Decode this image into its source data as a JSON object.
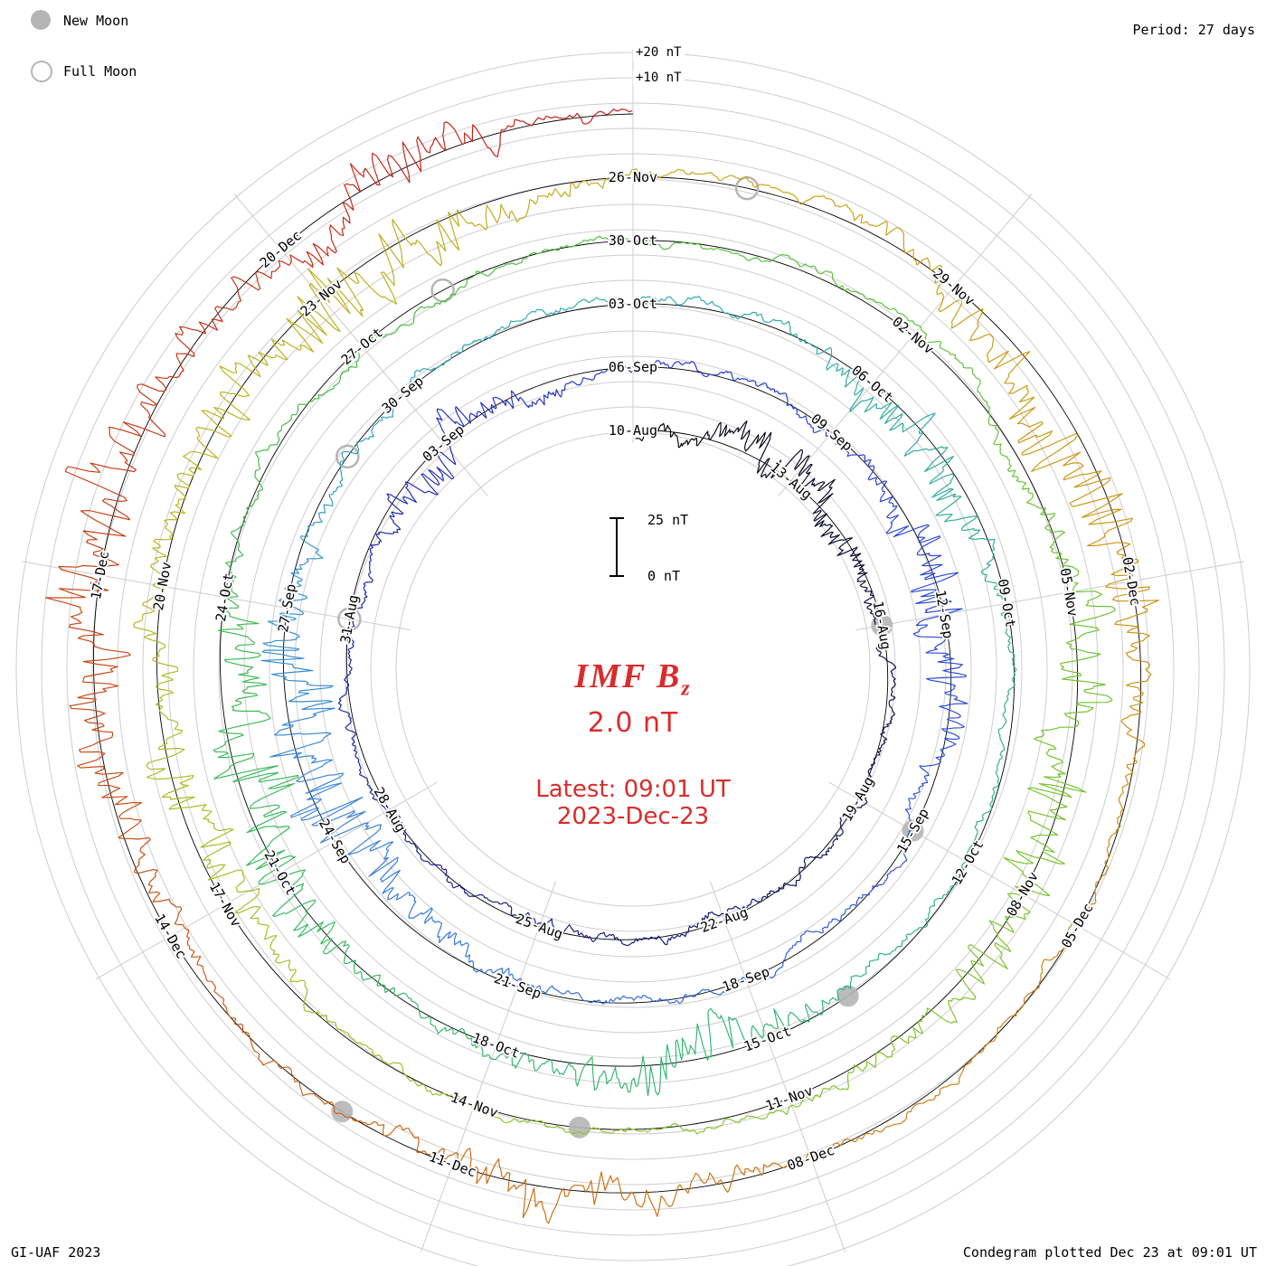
{
  "header": {
    "period": "Period: 27 days"
  },
  "legend": {
    "new_moon": "New Moon",
    "full_moon": "Full Moon"
  },
  "scale": {
    "plus20": "+20 nT",
    "plus10": "+10 nT",
    "bar_top": "25 nT",
    "bar_zero": "0 nT"
  },
  "center": {
    "title_main": "IMF B",
    "title_sub": "z",
    "value": "2.0 nT",
    "latest_line1": "Latest: 09:01 UT",
    "latest_line2": "2023-Dec-23"
  },
  "footer": {
    "left": "GI-UAF 2023",
    "right": "Condegram plotted Dec 23 at 09:01 UT"
  },
  "chart_data": {
    "type": "line",
    "style": "condegram-spiral-polar",
    "parameter": "IMF Bz",
    "units": "nT",
    "current_value_nT": 2.0,
    "latest_utc": "2023-Dec-23 09:01 UT",
    "period_days": 27,
    "days_total": 135,
    "revolutions": 5,
    "start_day_label": "10-Aug",
    "end_day_label": "23-Dec",
    "ring_start_labels": [
      "10-Aug",
      "06-Sep",
      "03-Oct",
      "30-Oct",
      "26-Nov"
    ],
    "label_step_days": 3,
    "date_labels": [
      {
        "day": 0,
        "label": "10-Aug"
      },
      {
        "day": 3,
        "label": "13-Aug"
      },
      {
        "day": 6,
        "label": "16-Aug"
      },
      {
        "day": 9,
        "label": "19-Aug"
      },
      {
        "day": 12,
        "label": "22-Aug"
      },
      {
        "day": 15,
        "label": "25-Aug"
      },
      {
        "day": 18,
        "label": "28-Aug"
      },
      {
        "day": 21,
        "label": "31-Aug"
      },
      {
        "day": 24,
        "label": "03-Sep"
      },
      {
        "day": 27,
        "label": "06-Sep"
      },
      {
        "day": 30,
        "label": "09-Sep"
      },
      {
        "day": 33,
        "label": "12-Sep"
      },
      {
        "day": 36,
        "label": "15-Sep"
      },
      {
        "day": 39,
        "label": "18-Sep"
      },
      {
        "day": 42,
        "label": "21-Sep"
      },
      {
        "day": 45,
        "label": "24-Sep"
      },
      {
        "day": 48,
        "label": "27-Sep"
      },
      {
        "day": 51,
        "label": "30-Sep"
      },
      {
        "day": 54,
        "label": "03-Oct"
      },
      {
        "day": 57,
        "label": "06-Oct"
      },
      {
        "day": 60,
        "label": "09-Oct"
      },
      {
        "day": 63,
        "label": "12-Oct"
      },
      {
        "day": 66,
        "label": "15-Oct"
      },
      {
        "day": 69,
        "label": "18-Oct"
      },
      {
        "day": 72,
        "label": "21-Oct"
      },
      {
        "day": 75,
        "label": "24-Oct"
      },
      {
        "day": 78,
        "label": "27-Oct"
      },
      {
        "day": 81,
        "label": "30-Oct"
      },
      {
        "day": 84,
        "label": "02-Nov"
      },
      {
        "day": 87,
        "label": "05-Nov"
      },
      {
        "day": 90,
        "label": "08-Nov"
      },
      {
        "day": 93,
        "label": "11-Nov"
      },
      {
        "day": 96,
        "label": "14-Nov"
      },
      {
        "day": 99,
        "label": "17-Nov"
      },
      {
        "day": 102,
        "label": "20-Nov"
      },
      {
        "day": 105,
        "label": "23-Nov"
      },
      {
        "day": 108,
        "label": "26-Nov"
      },
      {
        "day": 111,
        "label": "29-Nov"
      },
      {
        "day": 114,
        "label": "02-Dec"
      },
      {
        "day": 117,
        "label": "05-Dec"
      },
      {
        "day": 120,
        "label": "08-Dec"
      },
      {
        "day": 123,
        "label": "11-Dec"
      },
      {
        "day": 126,
        "label": "14-Dec"
      },
      {
        "day": 129,
        "label": "17-Dec"
      },
      {
        "day": 132,
        "label": "20-Dec"
      }
    ],
    "grid": {
      "circle_step_nT": 10,
      "radial_sectors": 9
    },
    "radial_reference_labels": [
      "+20 nT",
      "+10 nT"
    ],
    "scale_bar": {
      "top": "25 nT",
      "bottom": "0 nT",
      "span_nT": 25
    },
    "moons": {
      "new_days": [
        6,
        36,
        65,
        95,
        124
      ],
      "new_dates": [
        "16-Aug",
        "15-Sep",
        "14-Oct",
        "13-Nov",
        "12-Dec"
      ],
      "full_days": [
        21,
        50,
        79,
        109
      ],
      "full_dates": [
        "31-Aug",
        "29-Sep",
        "28-Oct",
        "27-Nov"
      ]
    },
    "colormap": [
      [
        0,
        "#000000"
      ],
      [
        9,
        "#0d0d55"
      ],
      [
        19,
        "#1a1a9e"
      ],
      [
        28,
        "#2336cc"
      ],
      [
        38,
        "#2f55dd"
      ],
      [
        46,
        "#3584d8"
      ],
      [
        52,
        "#2ea9b9"
      ],
      [
        58,
        "#2aab97"
      ],
      [
        65,
        "#2cb37c"
      ],
      [
        72,
        "#35b75d"
      ],
      [
        80,
        "#4cbb3a"
      ],
      [
        88,
        "#6ec22b"
      ],
      [
        96,
        "#97c122"
      ],
      [
        103,
        "#b5b51c"
      ],
      [
        109,
        "#c6a312"
      ],
      [
        116,
        "#cc8a10"
      ],
      [
        123,
        "#cc660e"
      ],
      [
        129,
        "#c63f12"
      ],
      [
        135,
        "#c21414"
      ]
    ],
    "disturbances": [
      [
        3,
        8,
        1.5
      ],
      [
        24,
        9,
        1.0
      ],
      [
        33,
        12,
        1.2
      ],
      [
        46,
        16,
        1.6
      ],
      [
        58,
        10,
        1.0
      ],
      [
        67,
        10,
        1.2
      ],
      [
        73,
        17,
        1.4
      ],
      [
        89,
        14,
        1.8
      ],
      [
        100,
        10,
        1.2
      ],
      [
        105,
        14,
        1.5
      ],
      [
        113,
        15,
        1.5
      ],
      [
        122,
        10,
        1.0
      ],
      [
        129,
        16,
        1.6
      ],
      [
        133,
        10,
        0.8
      ]
    ],
    "noise_seed": 1337
  }
}
